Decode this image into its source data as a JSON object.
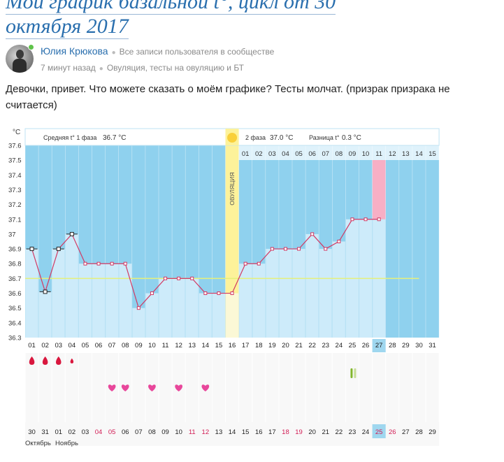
{
  "post": {
    "title_line1": "Мой график базальной t°, цикл от 30",
    "title_line2": "октября 2017",
    "author": "Юлия Крюкова",
    "all_posts": "Все записи пользователя в сообществе",
    "time": "7 минут назад",
    "tags": "Овуляция, тесты на овуляцию и БТ",
    "text": "Девочки, привет. Что можете сказать о моём графике? Тесты молчат. (призрак призрака не считается)"
  },
  "colors": {
    "phase_bg": "#8fd1ee",
    "column_fill": "#cdebfa",
    "ovulation": "#fdf29a",
    "ovulation_sun": "#f9d03b",
    "highlight_pink": "#f7afc5",
    "line": "#d23a64",
    "average_line": "#e6f07a",
    "heart": "#e8479b",
    "blood": "#d9173e",
    "test_green": "#82b62d",
    "today_bg": "#9fd7ef"
  },
  "chart_data": {
    "type": "line",
    "y_unit": "°C",
    "ylim": [
      36.3,
      37.6
    ],
    "y_ticks": [
      "37.6",
      "37.5",
      "37.4",
      "37.3",
      "37.2",
      "37.1",
      "37",
      "36.9",
      "36.8",
      "36.7",
      "36.6",
      "36.5",
      "36.4",
      "36.3"
    ],
    "cycle_days": [
      "01",
      "02",
      "03",
      "04",
      "05",
      "06",
      "07",
      "08",
      "09",
      "10",
      "11",
      "12",
      "13",
      "14",
      "15",
      "16",
      "17",
      "18",
      "19",
      "20",
      "21",
      "22",
      "23",
      "24",
      "25",
      "26",
      "27",
      "28",
      "29",
      "30",
      "31"
    ],
    "temperatures": [
      36.9,
      36.61,
      36.9,
      37.0,
      36.8,
      36.8,
      36.8,
      36.8,
      36.5,
      36.6,
      36.7,
      36.7,
      36.7,
      36.6,
      36.6,
      36.6,
      36.8,
      36.8,
      36.9,
      36.9,
      36.9,
      37.0,
      36.9,
      36.95,
      37.1,
      37.1,
      37.1
    ],
    "manual_points_days": [
      1,
      2,
      3,
      4
    ],
    "phase1_average_label": "Средняя t° 1 фаза",
    "phase1_average": "36.7 °C",
    "phase2_label": "2 фаза",
    "phase2_average": "37.0 °C",
    "difference_label": "Разница t°",
    "difference": "0.3 °C",
    "average_line_value": 36.7,
    "ovulation_label": "ОВУЛЯЦИЯ",
    "ovulation_day": 16,
    "luteal_day_labels": [
      "01",
      "02",
      "03",
      "04",
      "05",
      "06",
      "07",
      "08",
      "09",
      "10",
      "11",
      "12",
      "13",
      "14",
      "15"
    ],
    "highlighted_luteal_day": "11",
    "today_cycle_day": "27",
    "period_days": [
      1,
      2,
      3,
      4
    ],
    "intercourse_days": [
      7,
      8,
      10,
      12,
      14
    ],
    "ovulation_test_day": 25,
    "calendar_dates": [
      "30",
      "31",
      "01",
      "02",
      "03",
      "04",
      "05",
      "06",
      "07",
      "08",
      "09",
      "10",
      "11",
      "12",
      "13",
      "14",
      "15",
      "16",
      "17",
      "18",
      "19",
      "20",
      "21",
      "22",
      "23",
      "24",
      "25",
      "26",
      "27",
      "28",
      "29"
    ],
    "weekend_dates": [
      "04",
      "05",
      "11",
      "12",
      "18",
      "19",
      "25",
      "26"
    ],
    "today_date": "25",
    "month_labels": [
      "Октябрь",
      "Ноябрь"
    ]
  }
}
